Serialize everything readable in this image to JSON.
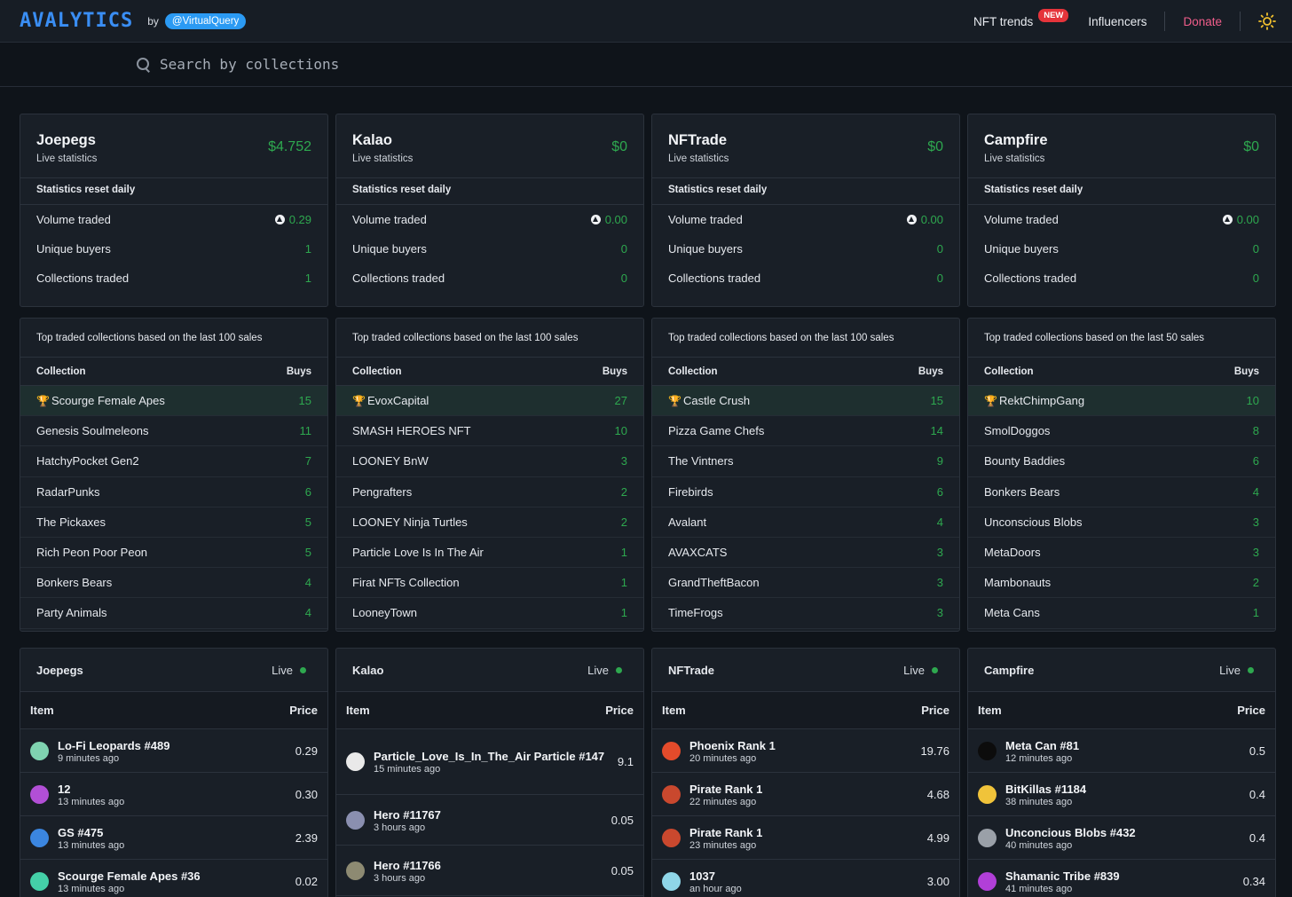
{
  "nav": {
    "logo": "AVALYTICS",
    "by": "by",
    "handle": "@VirtualQuery",
    "nft_trends": "NFT trends",
    "new_badge": "NEW",
    "influencers": "Influencers",
    "donate": "Donate"
  },
  "search": {
    "placeholder": "Search by collections"
  },
  "common": {
    "live_statistics": "Live statistics",
    "reset": "Statistics reset daily",
    "volume": "Volume traded",
    "buyers": "Unique buyers",
    "collections": "Collections traded",
    "col_collection": "Collection",
    "col_buys": "Buys",
    "live": "Live",
    "col_item": "Item",
    "col_price": "Price"
  },
  "markets": [
    {
      "name": "Joepegs",
      "amount": "$4.752",
      "volume": "0.29",
      "buyers": "1",
      "collections": "1",
      "top_title": "Top traded collections based on the last 100 sales",
      "top": [
        {
          "name": "Scourge Female Apes",
          "buys": "15"
        },
        {
          "name": "Genesis Soulmeleons",
          "buys": "11"
        },
        {
          "name": "HatchyPocket Gen2",
          "buys": "7"
        },
        {
          "name": "RadarPunks",
          "buys": "6"
        },
        {
          "name": "The Pickaxes",
          "buys": "5"
        },
        {
          "name": "Rich Peon Poor Peon",
          "buys": "5"
        },
        {
          "name": "Bonkers Bears",
          "buys": "4"
        },
        {
          "name": "Party Animals",
          "buys": "4"
        }
      ],
      "live": [
        {
          "name": "Lo-Fi Leopards #489",
          "time": "9 minutes ago",
          "price": "0.29",
          "color": "#7fd3b0"
        },
        {
          "name": "12",
          "time": "13 minutes ago",
          "price": "0.30",
          "color": "#b24fd6"
        },
        {
          "name": "GS #475",
          "time": "13 minutes ago",
          "price": "2.39",
          "color": "#3b86e0"
        },
        {
          "name": "Scourge Female Apes #36",
          "time": "13 minutes ago",
          "price": "0.02",
          "color": "#44d0a8"
        }
      ]
    },
    {
      "name": "Kalao",
      "amount": "$0",
      "volume": "0.00",
      "buyers": "0",
      "collections": "0",
      "top_title": "Top traded collections based on the last 100 sales",
      "top": [
        {
          "name": "EvoxCapital",
          "buys": "27"
        },
        {
          "name": "SMASH HEROES NFT",
          "buys": "10"
        },
        {
          "name": "LOONEY BnW",
          "buys": "3"
        },
        {
          "name": "Pengrafters",
          "buys": "2"
        },
        {
          "name": "LOONEY Ninja Turtles",
          "buys": "2"
        },
        {
          "name": "Particle Love Is In The Air",
          "buys": "1"
        },
        {
          "name": "Firat NFTs Collection",
          "buys": "1"
        },
        {
          "name": "LooneyTown",
          "buys": "1"
        }
      ],
      "live": [
        {
          "name": "Particle_Love_Is_In_The_Air Particle #147",
          "time": "15 minutes ago",
          "price": "9.1",
          "color": "#e9e9e9"
        },
        {
          "name": "Hero #11767",
          "time": "3 hours ago",
          "price": "0.05",
          "color": "#8a8fb0"
        },
        {
          "name": "Hero #11766",
          "time": "3 hours ago",
          "price": "0.05",
          "color": "#8d8a72"
        }
      ]
    },
    {
      "name": "NFTrade",
      "amount": "$0",
      "volume": "0.00",
      "buyers": "0",
      "collections": "0",
      "top_title": "Top traded collections based on the last 100 sales",
      "top": [
        {
          "name": "Castle Crush",
          "buys": "15"
        },
        {
          "name": "Pizza Game Chefs",
          "buys": "14"
        },
        {
          "name": "The Vintners",
          "buys": "9"
        },
        {
          "name": "Firebirds",
          "buys": "6"
        },
        {
          "name": "Avalant",
          "buys": "4"
        },
        {
          "name": "AVAXCATS",
          "buys": "3"
        },
        {
          "name": "GrandTheftBacon",
          "buys": "3"
        },
        {
          "name": "TimeFrogs",
          "buys": "3"
        }
      ],
      "live": [
        {
          "name": "Phoenix Rank 1",
          "time": "20 minutes ago",
          "price": "19.76",
          "color": "#e44b2b"
        },
        {
          "name": "Pirate Rank 1",
          "time": "22 minutes ago",
          "price": "4.68",
          "color": "#c9482e"
        },
        {
          "name": "Pirate Rank 1",
          "time": "23 minutes ago",
          "price": "4.99",
          "color": "#c9482e"
        },
        {
          "name": "1037",
          "time": "an hour ago",
          "price": "3.00",
          "color": "#8fd6e8"
        }
      ]
    },
    {
      "name": "Campfire",
      "amount": "$0",
      "volume": "0.00",
      "buyers": "0",
      "collections": "0",
      "top_title": "Top traded collections based on the last 50 sales",
      "top": [
        {
          "name": "RektChimpGang",
          "buys": "10"
        },
        {
          "name": "SmolDoggos",
          "buys": "8"
        },
        {
          "name": "Bounty Baddies",
          "buys": "6"
        },
        {
          "name": "Bonkers Bears",
          "buys": "4"
        },
        {
          "name": "Unconscious Blobs",
          "buys": "3"
        },
        {
          "name": "MetaDoors",
          "buys": "3"
        },
        {
          "name": "Mambonauts",
          "buys": "2"
        },
        {
          "name": "Meta Cans",
          "buys": "1"
        }
      ],
      "live": [
        {
          "name": "Meta Can #81",
          "time": "12 minutes ago",
          "price": "0.5",
          "color": "#0c0c0c"
        },
        {
          "name": "BitKillas #1184",
          "time": "38 minutes ago",
          "price": "0.4",
          "color": "#f0c33a"
        },
        {
          "name": "Unconcious Blobs #432",
          "time": "40 minutes ago",
          "price": "0.4",
          "color": "#9aa0a8"
        },
        {
          "name": "Shamanic Tribe #839",
          "time": "41 minutes ago",
          "price": "0.34",
          "color": "#b13fd8"
        }
      ]
    }
  ],
  "colors": {
    "accent": "#3a8ef4",
    "positive": "#2ea84f",
    "donate": "#f05d8a",
    "badge": "#e5343b"
  }
}
